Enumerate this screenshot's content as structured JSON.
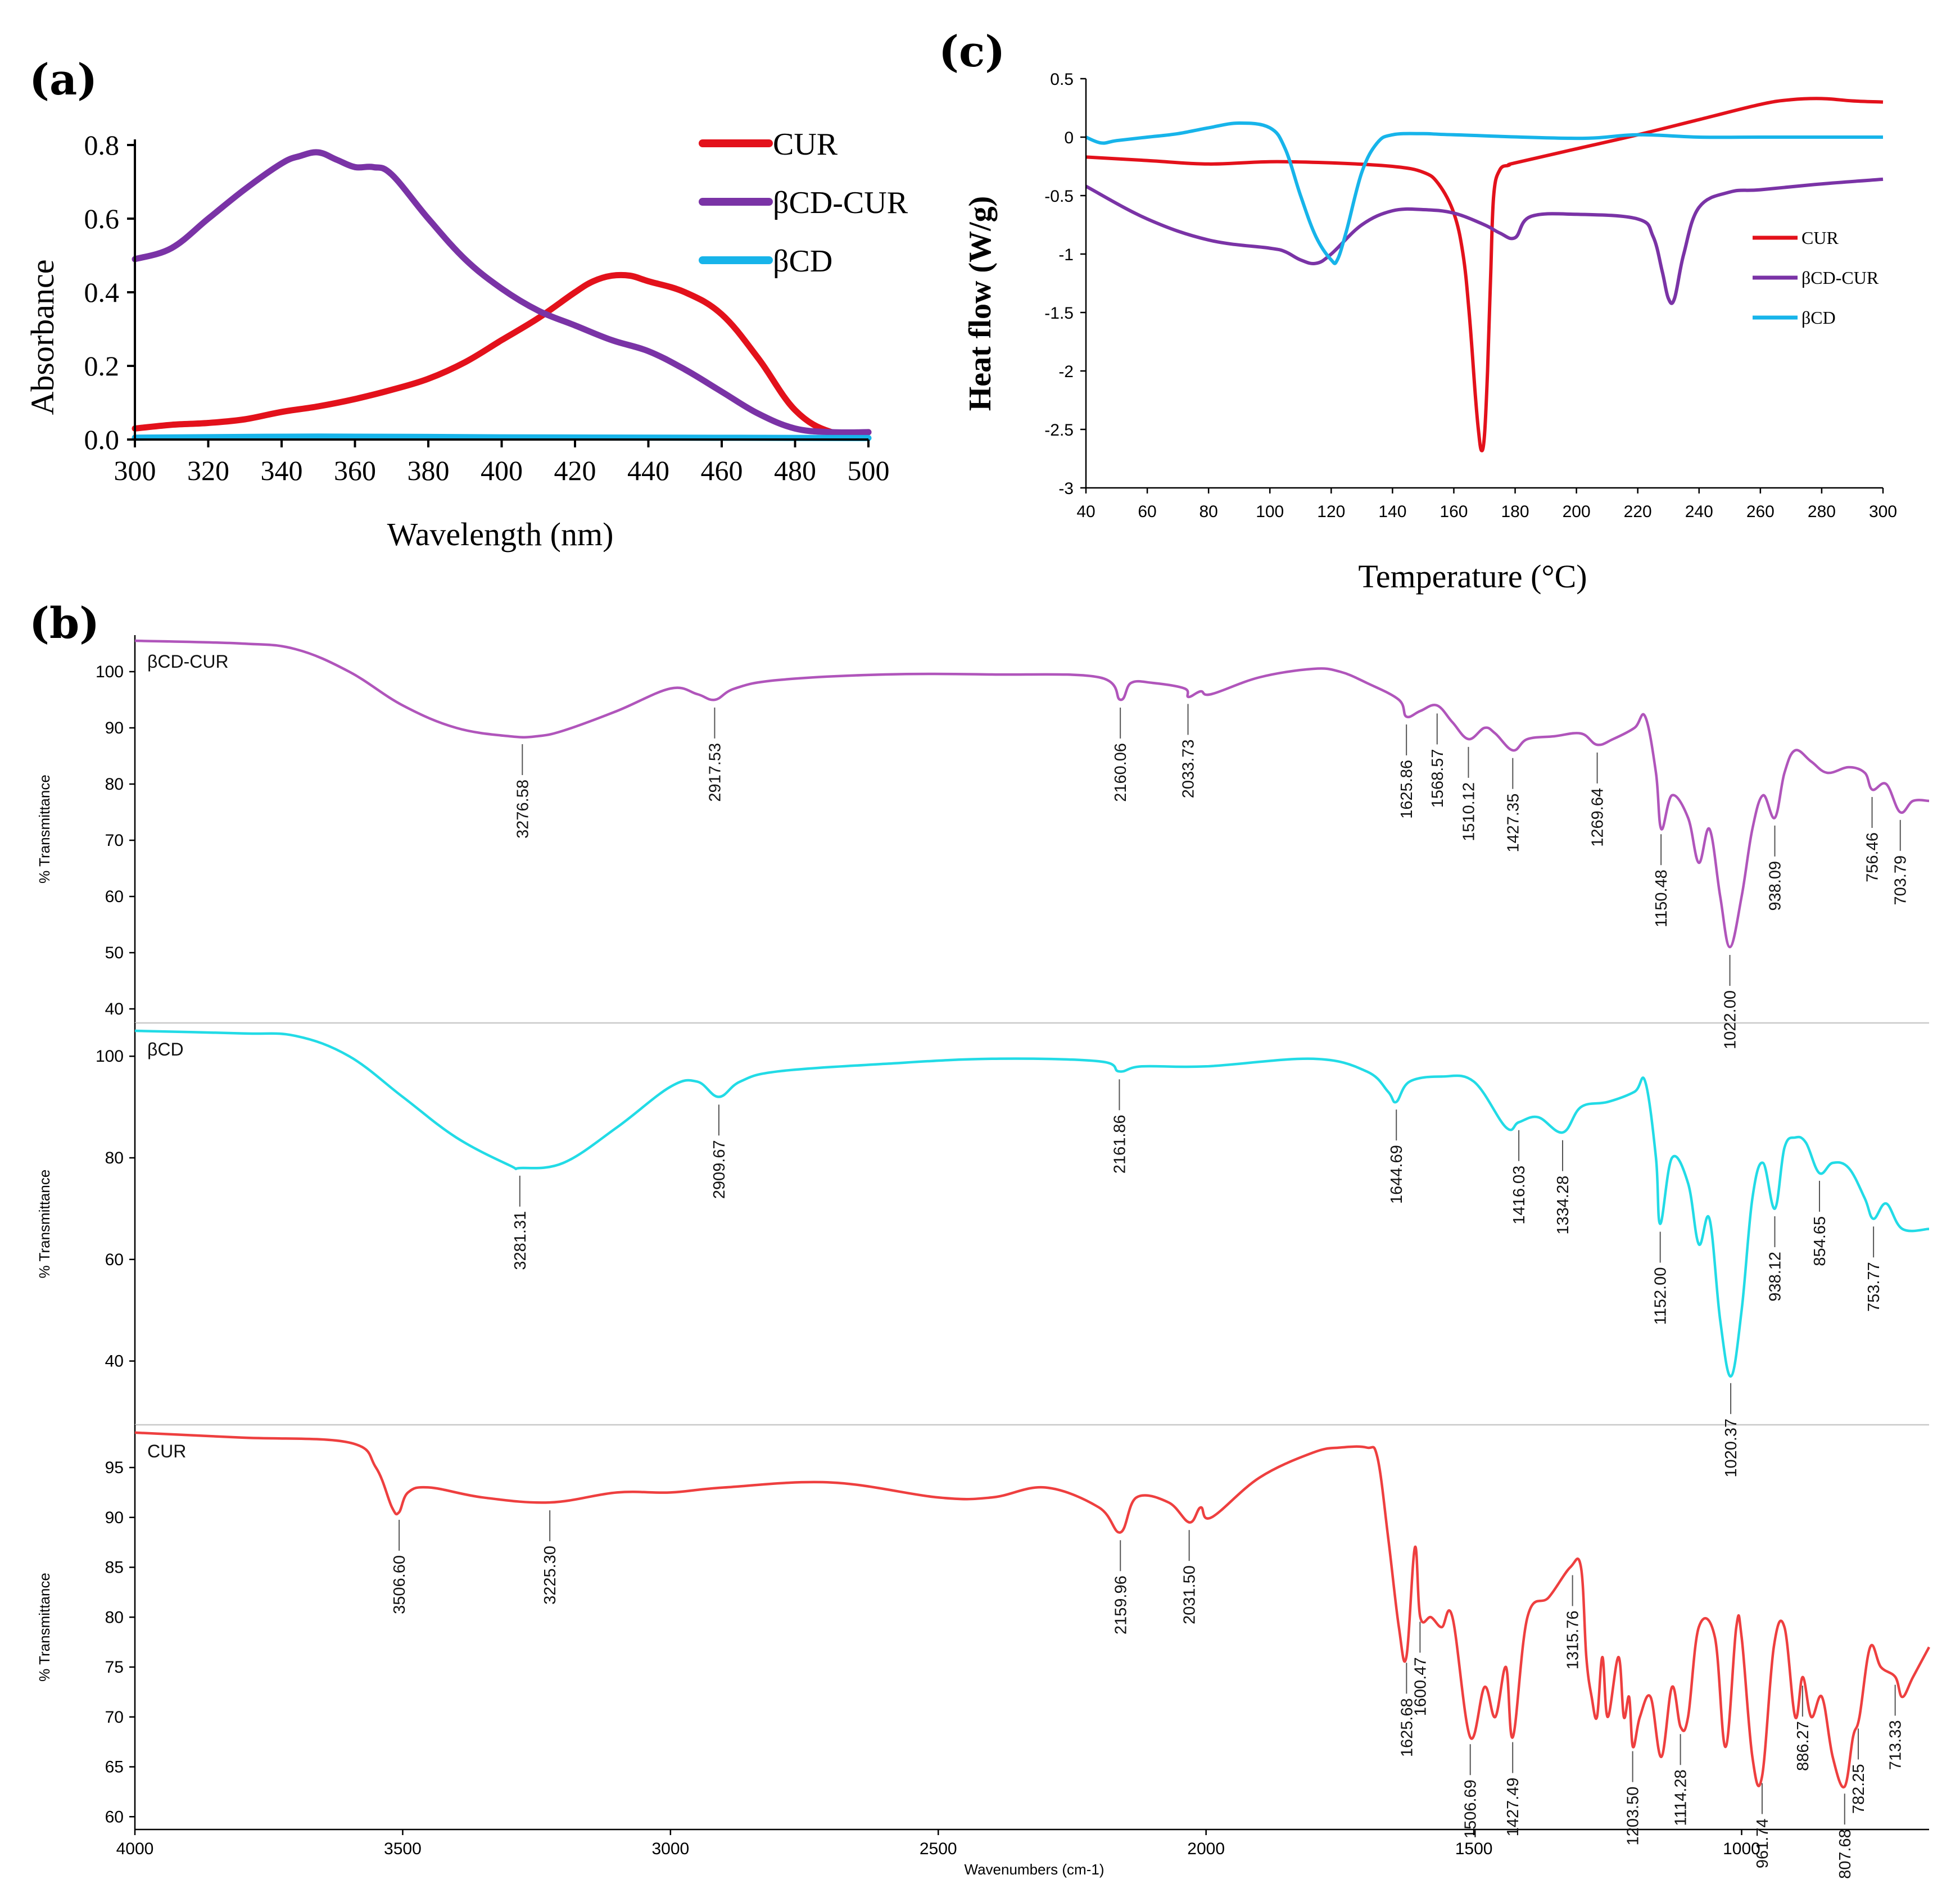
{
  "panels": {
    "a": {
      "label": "(a)",
      "chart_data": {
        "type": "line",
        "xlabel": "Wavelength (nm)",
        "ylabel": "Absorbance",
        "xlim": [
          300,
          500
        ],
        "ylim": [
          0,
          0.8
        ],
        "xticks": [
          300,
          320,
          340,
          360,
          380,
          400,
          420,
          440,
          460,
          480,
          500
        ],
        "yticks": [
          "0.0",
          "0.2",
          "0.4",
          "0.6",
          "0.8"
        ],
        "legend_position": "top-right",
        "series": [
          {
            "name": "CUR",
            "color": "#e3111b",
            "x": [
              300,
              310,
              320,
              330,
              340,
              350,
              360,
              370,
              380,
              390,
              400,
              410,
              420,
              425,
              430,
              435,
              440,
              450,
              460,
              470,
              480,
              490,
              500
            ],
            "y": [
              0.03,
              0.04,
              0.045,
              0.055,
              0.075,
              0.09,
              0.11,
              0.135,
              0.165,
              0.21,
              0.27,
              0.33,
              0.4,
              0.43,
              0.445,
              0.445,
              0.43,
              0.4,
              0.34,
              0.22,
              0.08,
              0.02,
              0.02
            ]
          },
          {
            "name": "βCD-CUR",
            "color": "#7a33a6",
            "x": [
              300,
              310,
              320,
              330,
              340,
              345,
              350,
              355,
              360,
              365,
              370,
              380,
              390,
              400,
              410,
              420,
              430,
              440,
              450,
              460,
              470,
              480,
              490,
              500
            ],
            "y": [
              0.49,
              0.52,
              0.6,
              0.68,
              0.75,
              0.77,
              0.78,
              0.76,
              0.74,
              0.74,
              0.72,
              0.6,
              0.49,
              0.41,
              0.35,
              0.31,
              0.27,
              0.24,
              0.19,
              0.13,
              0.07,
              0.03,
              0.02,
              0.02
            ]
          },
          {
            "name": "βCD",
            "color": "#17b4ea",
            "x": [
              300,
              350,
              400,
              450,
              500
            ],
            "y": [
              0.005,
              0.008,
              0.006,
              0.005,
              0.004
            ]
          }
        ]
      }
    },
    "c": {
      "label": "(c)",
      "chart_data": {
        "type": "line",
        "xlabel": "Temperature (°C)",
        "ylabel": "Heat flow (W/g)",
        "xlim": [
          40,
          300
        ],
        "ylim": [
          -3,
          0.5
        ],
        "xticks": [
          40,
          60,
          80,
          100,
          120,
          140,
          160,
          180,
          200,
          220,
          240,
          260,
          280,
          300
        ],
        "yticks": [
          "0.5",
          "0",
          "-0.5",
          "-1",
          "-1.5",
          "-2",
          "-2.5",
          "-3"
        ],
        "legend_position": "right",
        "series": [
          {
            "name": "CUR",
            "color": "#e3111b",
            "x": [
              40,
              60,
              80,
              100,
              120,
              140,
              150,
              155,
              160,
              163,
              165,
              167,
              168,
              169,
              170,
              171,
              172,
              173,
              175,
              178,
              180,
              200,
              220,
              240,
              260,
              270,
              280,
              290,
              300
            ],
            "y": [
              -0.17,
              -0.2,
              -0.23,
              -0.21,
              -0.22,
              -0.25,
              -0.3,
              -0.4,
              -0.65,
              -1.0,
              -1.5,
              -2.2,
              -2.5,
              -2.68,
              -2.55,
              -2.0,
              -1.2,
              -0.5,
              -0.28,
              -0.24,
              -0.22,
              -0.1,
              0.02,
              0.15,
              0.28,
              0.32,
              0.33,
              0.31,
              0.3
            ]
          },
          {
            "name": "βCD-CUR",
            "color": "#7a33a6",
            "x": [
              40,
              60,
              80,
              100,
              105,
              110,
              115,
              120,
              130,
              140,
              150,
              160,
              170,
              175,
              180,
              185,
              200,
              220,
              225,
              228,
              230,
              232,
              235,
              240,
              250,
              260,
              280,
              300
            ],
            "y": [
              -0.42,
              -0.7,
              -0.88,
              -0.95,
              -0.98,
              -1.05,
              -1.08,
              -1.0,
              -0.75,
              -0.63,
              -0.62,
              -0.65,
              -0.75,
              -0.82,
              -0.86,
              -0.68,
              -0.66,
              -0.7,
              -0.85,
              -1.15,
              -1.38,
              -1.38,
              -1.0,
              -0.6,
              -0.47,
              -0.45,
              -0.4,
              -0.36
            ]
          },
          {
            "name": "βCD",
            "color": "#17b4ea",
            "x": [
              40,
              45,
              50,
              60,
              70,
              80,
              90,
              100,
              105,
              110,
              115,
              120,
              122,
              125,
              130,
              135,
              140,
              150,
              160,
              200,
              220,
              240,
              260,
              300
            ],
            "y": [
              0.0,
              -0.05,
              -0.03,
              0.0,
              0.03,
              0.08,
              0.12,
              0.08,
              -0.1,
              -0.5,
              -0.85,
              -1.05,
              -1.05,
              -0.8,
              -0.3,
              -0.05,
              0.02,
              0.03,
              0.02,
              -0.01,
              0.02,
              0.0,
              0.0,
              0.0
            ]
          }
        ]
      }
    },
    "b": {
      "label": "(b)",
      "xlabel": "Wavenumbers (cm-1)",
      "xlim": [
        4000,
        650
      ],
      "xticks": [
        4000,
        3500,
        3000,
        2500,
        2000,
        1500,
        1000
      ],
      "chart_data": [
        {
          "type": "line",
          "name": "βCD-CUR",
          "color": "#b055bb",
          "ylabel": "% Transmittance",
          "ylim": [
            38,
            106
          ],
          "yticks": [
            40,
            50,
            60,
            70,
            80,
            90,
            100
          ],
          "x": [
            4000,
            3800,
            3700,
            3600,
            3500,
            3400,
            3300,
            3250,
            3200,
            3100,
            3000,
            2950,
            2917,
            2880,
            2800,
            2600,
            2400,
            2200,
            2160,
            2140,
            2100,
            2040,
            2033,
            2010,
            1990,
            1900,
            1800,
            1750,
            1700,
            1640,
            1626,
            1600,
            1569,
            1540,
            1510,
            1480,
            1460,
            1427,
            1400,
            1350,
            1300,
            1270,
            1240,
            1200,
            1180,
            1160,
            1150,
            1130,
            1100,
            1080,
            1060,
            1040,
            1022,
            1000,
            980,
            960,
            938,
            920,
            900,
            870,
            840,
            800,
            770,
            756,
            730,
            704,
            680,
            650
          ],
          "y": [
            105.5,
            105,
            104,
            100,
            94,
            90,
            88.5,
            88.5,
            89.5,
            93,
            97,
            96,
            95,
            97,
            98.5,
            99.5,
            99.5,
            99,
            95,
            98,
            98,
            97,
            95.5,
            96.5,
            96,
            99,
            100.5,
            100,
            98,
            95,
            92,
            93,
            94,
            91,
            88,
            90,
            89,
            86,
            88,
            88.5,
            89,
            87,
            88,
            90,
            92,
            82,
            72,
            78,
            74,
            66,
            72,
            60,
            51,
            60,
            72,
            78,
            74,
            82,
            86,
            84,
            82,
            83,
            82,
            79,
            80,
            75,
            77,
            77
          ],
          "annotations": [
            "3276.58",
            "2917.53",
            "2160.06",
            "2033.73",
            "1625.86",
            "1568.57",
            "1510.12",
            "1427.35",
            "1269.64",
            "1150.48",
            "1022.00",
            "938.09",
            "756.46",
            "703.79"
          ],
          "annotation_x": [
            3276.58,
            2917.53,
            2160.06,
            2033.73,
            1625.86,
            1568.57,
            1510.12,
            1427.35,
            1269.64,
            1150.48,
            1022.0,
            938.09,
            756.46,
            703.79
          ]
        },
        {
          "type": "line",
          "name": "βCD",
          "color": "#22dbe6",
          "ylabel": "% Transmittance",
          "ylim": [
            28,
            106
          ],
          "yticks": [
            40,
            60,
            80,
            100
          ],
          "x": [
            4000,
            3800,
            3700,
            3600,
            3500,
            3400,
            3300,
            3280,
            3200,
            3100,
            3000,
            2950,
            2910,
            2870,
            2800,
            2600,
            2400,
            2200,
            2162,
            2120,
            2000,
            1800,
            1700,
            1660,
            1645,
            1620,
            1560,
            1500,
            1440,
            1416,
            1380,
            1334,
            1300,
            1250,
            1200,
            1180,
            1160,
            1152,
            1130,
            1100,
            1080,
            1060,
            1040,
            1020,
            1000,
            980,
            960,
            938,
            920,
            900,
            880,
            855,
            830,
            800,
            770,
            754,
            730,
            700,
            650
          ],
          "y": [
            105,
            104.5,
            104,
            100,
            92,
            84,
            78.5,
            78,
            79,
            86,
            94,
            95,
            92,
            95,
            97,
            98.5,
            99.5,
            99,
            97,
            98,
            98,
            99.5,
            97,
            93,
            91,
            95,
            96,
            95,
            86,
            87,
            88,
            85,
            90,
            91,
            93,
            95,
            80,
            67,
            80,
            75,
            63,
            68,
            48,
            37,
            50,
            72,
            79,
            70,
            82,
            84,
            83,
            77,
            79,
            78,
            72,
            68,
            71,
            66,
            66
          ],
          "annotations": [
            "3281.31",
            "2909.67",
            "2161.86",
            "1644.69",
            "1416.03",
            "1334.28",
            "1152.00",
            "1020.37",
            "938.12",
            "854.65",
            "753.77"
          ],
          "annotation_x": [
            3281.31,
            2909.67,
            2161.86,
            1644.69,
            1416.03,
            1334.28,
            1152.0,
            1020.37,
            938.12,
            854.65,
            753.77
          ]
        },
        {
          "type": "line",
          "name": "CUR",
          "color": "#ee3f3f",
          "ylabel": "% Transmittance",
          "ylim": [
            59,
            99
          ],
          "yticks": [
            60,
            65,
            70,
            75,
            80,
            85,
            90,
            95
          ],
          "x": [
            4000,
            3800,
            3600,
            3550,
            3520,
            3507,
            3490,
            3450,
            3350,
            3225,
            3100,
            3000,
            2900,
            2700,
            2500,
            2400,
            2300,
            2200,
            2160,
            2130,
            2070,
            2031,
            2010,
            1990,
            1900,
            1800,
            1750,
            1700,
            1680,
            1660,
            1640,
            1626,
            1610,
            1600,
            1580,
            1560,
            1540,
            1507,
            1480,
            1460,
            1440,
            1427,
            1400,
            1360,
            1320,
            1300,
            1290,
            1280,
            1270,
            1260,
            1250,
            1230,
            1220,
            1210,
            1203,
            1190,
            1170,
            1150,
            1130,
            1114,
            1100,
            1080,
            1050,
            1030,
            1010,
            1000,
            980,
            962,
            940,
            920,
            900,
            886,
            870,
            850,
            830,
            808,
            792,
            780,
            760,
            740,
            713,
            700,
            680,
            650
          ],
          "y": [
            98.5,
            98,
            97.5,
            95,
            91,
            90.5,
            92.5,
            93,
            92,
            91.5,
            92.5,
            92.5,
            93,
            93.5,
            92,
            92,
            93,
            91,
            88.5,
            92,
            91.5,
            89.5,
            91,
            90,
            94,
            96.5,
            97,
            97,
            96,
            88,
            79,
            76,
            87,
            80,
            80,
            79,
            80,
            68,
            73,
            70,
            75,
            68,
            80,
            82,
            85,
            85,
            76,
            72,
            70,
            76,
            70,
            76,
            70,
            72,
            67,
            70,
            72,
            66,
            73,
            69,
            70,
            79,
            78,
            67,
            79,
            78,
            66,
            64,
            77,
            79,
            70,
            74,
            70,
            72,
            66,
            63,
            68,
            70,
            77,
            75,
            74,
            72,
            74,
            77
          ],
          "annotations": [
            "3506.60",
            "3225.30",
            "2159.96",
            "2031.50",
            "1625.68",
            "1600.47",
            "1506.69",
            "1427.49",
            "1315.76",
            "1203.50",
            "1114.28",
            "961.74",
            "886.27",
            "807.68",
            "782.25",
            "713.33"
          ],
          "annotation_x": [
            3506.6,
            3225.3,
            2159.96,
            2031.5,
            1625.68,
            1600.47,
            1506.69,
            1427.49,
            1315.76,
            1203.5,
            1114.28,
            961.74,
            886.27,
            807.68,
            782.25,
            713.33
          ]
        }
      ]
    }
  }
}
